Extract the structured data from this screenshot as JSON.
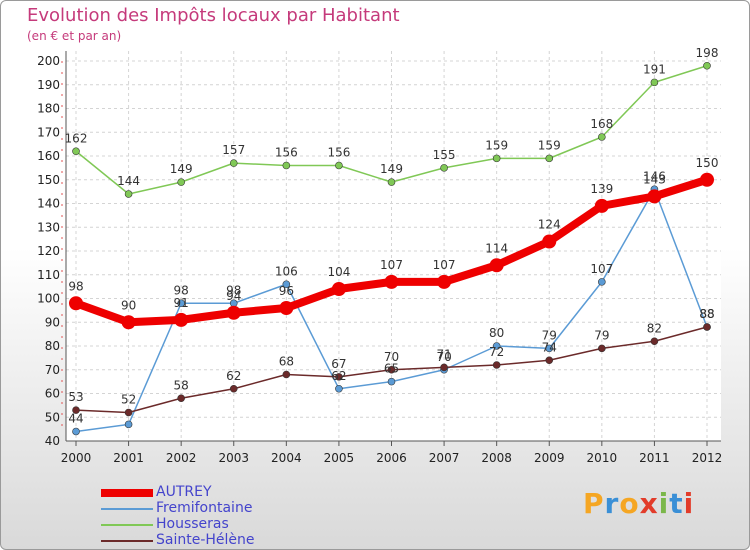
{
  "title": "Evolution des Impôts locaux par Habitant",
  "subtitle": "(en € et par an)",
  "logo": {
    "letters": [
      "P",
      "r",
      "o",
      "x",
      "i",
      "t",
      "i"
    ],
    "colors": [
      "#f5a623",
      "#3a8fd6",
      "#f5a623",
      "#e23c2a",
      "#7bb74a",
      "#3a8fd6",
      "#e23c2a"
    ]
  },
  "chart_data": {
    "type": "line",
    "title": "Evolution des Impôts locaux par Habitant",
    "subtitle": "(en € et par an)",
    "x": [
      "2000",
      "2001",
      "2002",
      "2003",
      "2004",
      "2005",
      "2006",
      "2007",
      "2008",
      "2009",
      "2010",
      "2011",
      "2012"
    ],
    "ylim": [
      40,
      200
    ],
    "yticks": [
      40,
      50,
      60,
      70,
      80,
      90,
      100,
      110,
      120,
      130,
      140,
      150,
      160,
      170,
      180,
      190,
      200
    ],
    "grid": true,
    "legend_position": "bottom-left",
    "series": [
      {
        "name": "AUTREY",
        "color": "#ee0000",
        "values": [
          98,
          90,
          91,
          94,
          96,
          104,
          107,
          107,
          114,
          124,
          139,
          143,
          150
        ],
        "labels": [
          "98",
          "90",
          "91",
          "94",
          "96",
          "104",
          "107",
          "107",
          "114",
          "124",
          "139",
          "143",
          "150"
        ]
      },
      {
        "name": "Fremifontaine",
        "color": "#5b9bd5",
        "values": [
          44,
          47,
          98,
          98,
          106,
          62,
          65,
          70,
          80,
          79,
          107,
          146,
          88
        ],
        "labels": [
          "44",
          "",
          "98",
          "98",
          "106",
          "62",
          "65",
          "70",
          "80",
          "79",
          "107",
          "146",
          "88"
        ]
      },
      {
        "name": "Housseras",
        "color": "#80c856",
        "values": [
          162,
          144,
          149,
          157,
          156,
          156,
          149,
          155,
          159,
          159,
          168,
          191,
          198
        ],
        "labels": [
          "162",
          "144",
          "149",
          "157",
          "156",
          "156",
          "149",
          "155",
          "159",
          "159",
          "168",
          "191",
          "198"
        ]
      },
      {
        "name": "Sainte-Hélène",
        "color": "#6b2a2a",
        "values": [
          53,
          52,
          58,
          62,
          68,
          67,
          70,
          71,
          72,
          74,
          79,
          82,
          88
        ],
        "labels": [
          "53",
          "52",
          "58",
          "62",
          "68",
          "67",
          "70",
          "71",
          "72",
          "74",
          "79",
          "82",
          "88"
        ]
      }
    ]
  }
}
